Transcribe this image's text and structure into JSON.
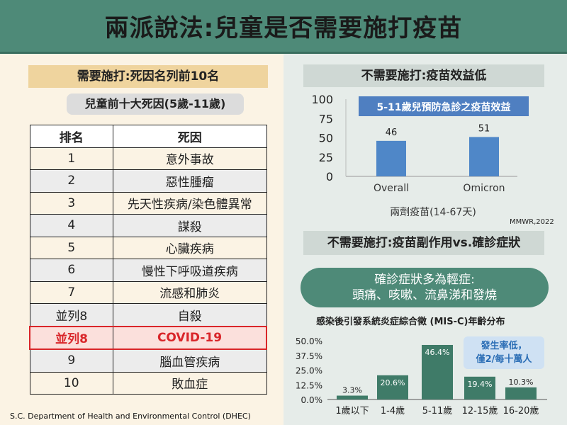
{
  "title": "兩派說法:兒童是否需要施打疫苗",
  "left": {
    "header": "需要施打:死因名列前10名",
    "subheader": "兒童前十大死因(5歲-11歲)",
    "table_headers": [
      "排名",
      "死因"
    ],
    "rows": [
      {
        "rank": "1",
        "cause": "意外事故"
      },
      {
        "rank": "2",
        "cause": "惡性腫瘤"
      },
      {
        "rank": "3",
        "cause": "先天性疾病/染色體異常"
      },
      {
        "rank": "4",
        "cause": "謀殺"
      },
      {
        "rank": "5",
        "cause": "心臟疾病"
      },
      {
        "rank": "6",
        "cause": "慢性下呼吸道疾病"
      },
      {
        "rank": "7",
        "cause": "流感和肺炎"
      },
      {
        "rank": "並列8",
        "cause": "自殺"
      },
      {
        "rank": "並列8",
        "cause": "COVID-19"
      },
      {
        "rank": "9",
        "cause": "腦血管疾病"
      },
      {
        "rank": "10",
        "cause": "敗血症"
      }
    ],
    "highlight_color": "#d9262a",
    "source": "S.C. Department of Health and Environmental Control (DHEC)"
  },
  "right": {
    "banner1": "不需要施打:疫苗效益低",
    "banner2": "不需要施打:疫苗副作用vs.確診症狀",
    "pill_line1": "確診症狀多為輕症:",
    "pill_line2": "頭痛、咳嗽、流鼻涕和發燒",
    "note_line1": "發生率低，",
    "note_line2": "僅2/每十萬人",
    "mmwr": "MMWR,2022"
  },
  "colors": {
    "green": "#4e8a78",
    "bar_blue": "#4f87c8",
    "bar_green": "#3f7b68",
    "title_blue": "#4f7fc1"
  },
  "chart_data": [
    {
      "type": "bar",
      "title": "5-11歲兒預防急診之疫苗效益",
      "categories": [
        "Overall",
        "Omicron"
      ],
      "values": [
        46,
        51
      ],
      "xlabel": "兩劑疫苗(14-67天)",
      "ylabel": "",
      "yticks": [
        "0",
        "25",
        "50",
        "75",
        "100"
      ],
      "ylim": [
        0,
        100
      ],
      "data_labels": [
        "46",
        "51"
      ],
      "grid": false
    },
    {
      "type": "bar",
      "title": "感染後引發系統炎症綜合徵 (MIS-C)年齡分布",
      "categories": [
        "1歲以下",
        "1-4歲",
        "5-11歲",
        "12-15歲",
        "16-20歲"
      ],
      "values": [
        3.3,
        20.6,
        46.4,
        19.4,
        10.3
      ],
      "data_labels": [
        "3.3%",
        "20.6%",
        "46.4%",
        "19.4%",
        "10.3%"
      ],
      "yticks": [
        "0.0%",
        "12.5%",
        "25.0%",
        "37.5%",
        "50.0%"
      ],
      "ylim": [
        0,
        50
      ],
      "grid": false
    }
  ]
}
